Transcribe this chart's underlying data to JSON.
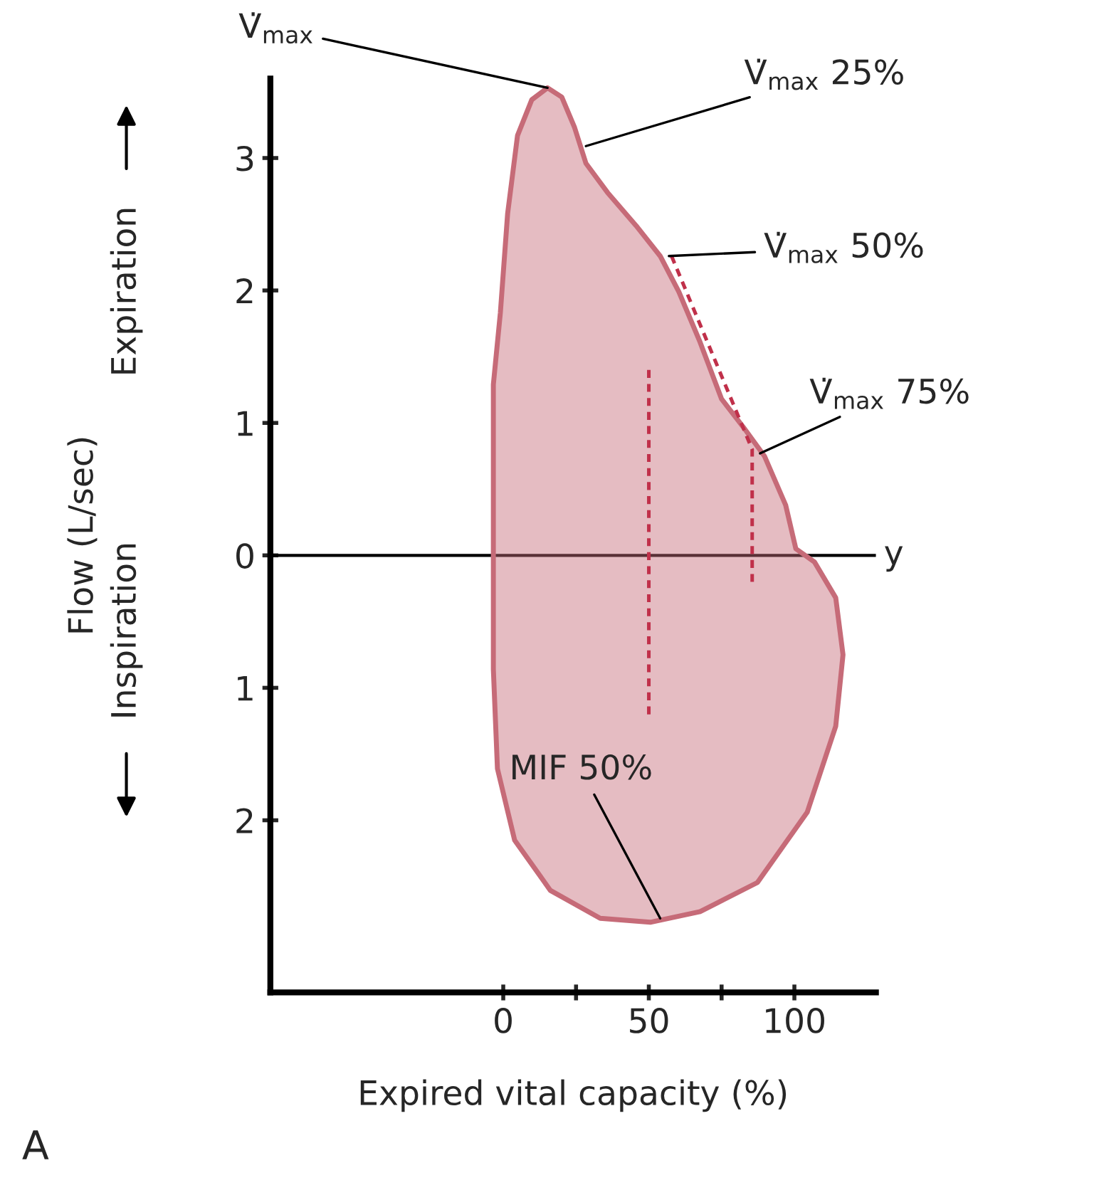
{
  "chart_data": {
    "type": "area",
    "xlabel": "Expired vital capacity (%)",
    "ylabel": "Flow (L/sec)",
    "xlim": [
      -80,
      128
    ],
    "ylim": [
      -3.3,
      3.6
    ],
    "xticks": [
      0,
      {
        "value": 25,
        "label": null
      },
      50,
      {
        "value": 75,
        "label": null
      },
      100
    ],
    "yticks": [
      {
        "value": -2,
        "label": "2"
      },
      {
        "value": -1,
        "label": "1"
      },
      0,
      1,
      2,
      3
    ],
    "grid": false,
    "series": [
      {
        "color": "#c66b78",
        "x": [
          -3.4,
          -3.4,
          -1,
          1.5,
          4.9,
          9.8,
          15.2,
          20.1,
          24.5,
          28.4,
          35.8,
          45.6,
          53.9,
          60.3,
          67.6,
          75,
          82.4,
          89.7,
          97,
          100.5,
          106.9,
          114.2,
          116.7,
          114.2,
          104.4,
          87.3,
          67.6,
          50.5,
          33.3,
          16.2,
          3.9,
          -2,
          -3.4,
          -3.4
        ],
        "values": [
          0,
          1.29,
          1.83,
          2.58,
          3.17,
          3.44,
          3.53,
          3.46,
          3.23,
          2.96,
          2.74,
          2.49,
          2.26,
          1.99,
          1.61,
          1.18,
          0.97,
          0.75,
          0.38,
          0.05,
          -0.05,
          -0.32,
          -0.75,
          -1.29,
          -1.94,
          -2.47,
          -2.69,
          -2.77,
          -2.74,
          -2.53,
          -2.15,
          -1.61,
          -0.86,
          0
        ]
      },
      {
        "type": "line",
        "line_style": "dashed",
        "color": "#c0304a",
        "x": [
          50,
          50
        ],
        "values": [
          1.4,
          -1.2
        ]
      },
      {
        "type": "line",
        "line_style": "dashed",
        "color": "#c0304a",
        "x": [
          57.8,
          85.5,
          85.5
        ],
        "values": [
          2.26,
          0.8,
          -0.2
        ]
      }
    ],
    "ref_lines": [
      {
        "axis": "y",
        "value": 0,
        "label": "y",
        "color": "#000000"
      }
    ],
    "annotations": [
      {
        "text": "V̇$_{max}$",
        "x": 15.2,
        "y": 3.53
      },
      {
        "text": "V̇$_{max}$ 25%",
        "x": 28.4,
        "y": 3.09
      },
      {
        "text": "V̇$_{max}$ 50%",
        "x": 56.9,
        "y": 2.26
      },
      {
        "text": "V̇$_{max}$ 75%",
        "x": 88.2,
        "y": 0.77
      },
      {
        "text": "MIF 50%",
        "x": 53.9,
        "y": -2.74
      },
      "Expiration",
      "Inspiration",
      "A"
    ]
  }
}
